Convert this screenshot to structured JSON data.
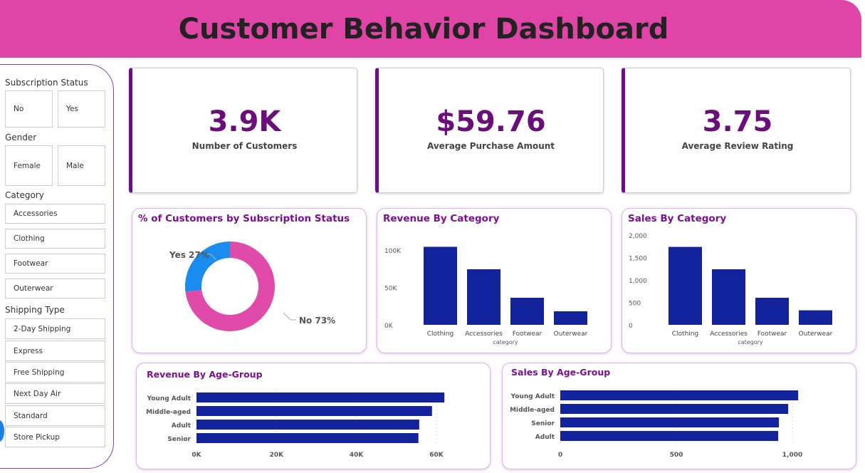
{
  "header": {
    "title": "Customer Behavior Dashboard"
  },
  "slicers": {
    "subscription": {
      "title": "Subscription Status",
      "options": [
        "No",
        "Yes"
      ]
    },
    "gender": {
      "title": "Gender",
      "options": [
        "Female",
        "Male"
      ]
    },
    "category": {
      "title": "Category",
      "options": [
        "Accessories",
        "Clothing",
        "Footwear",
        "Outerwear"
      ]
    },
    "shipping": {
      "title": "Shipping Type",
      "options": [
        "2-Day Shipping",
        "Express",
        "Free Shipping",
        "Next Day Air",
        "Standard",
        "Store Pickup"
      ]
    }
  },
  "kpis": [
    {
      "value": "3.9K",
      "label": "Number of Customers"
    },
    {
      "value": "$59.76",
      "label": "Average Purchase Amount"
    },
    {
      "value": "3.75",
      "label": "Average Review Rating"
    }
  ],
  "colors": {
    "header": "#e044a7",
    "bar": "#13239b",
    "accent": "#6a0f7a",
    "yes": "#1a8cf0",
    "no": "#e04aa8"
  },
  "chart_data": [
    {
      "type": "pie",
      "donut": true,
      "title": "% of Customers by Subscription Status",
      "categories": [
        "Yes",
        "No"
      ],
      "values": [
        27,
        73
      ],
      "labels": [
        "Yes 27%",
        "No 73%"
      ]
    },
    {
      "type": "bar",
      "title": "Revenue By Category",
      "categories": [
        "Clothing",
        "Accessories",
        "Footwear",
        "Outerwear"
      ],
      "values": [
        104300,
        74300,
        36200,
        18100
      ],
      "xlabel": "category",
      "ylim": [
        0,
        100000
      ],
      "yticks": [
        "0K",
        "50K",
        "100K"
      ]
    },
    {
      "type": "bar",
      "title": "Sales By Category",
      "categories": [
        "Clothing",
        "Accessories",
        "Footwear",
        "Outerwear"
      ],
      "values": [
        1737,
        1238,
        603,
        324
      ],
      "xlabel": "category",
      "ylim": [
        0,
        2000
      ],
      "yticks": [
        "0",
        "500",
        "1,000",
        "1,500",
        "2,000"
      ]
    },
    {
      "type": "bar",
      "orientation": "horizontal",
      "title": "Revenue By Age-Group",
      "categories": [
        "Young Adult",
        "Middle-aged",
        "Adult",
        "Senior"
      ],
      "values": [
        62000,
        58900,
        55700,
        55500
      ],
      "xlim": [
        0,
        60000
      ],
      "xticks": [
        "0K",
        "20K",
        "40K",
        "60K"
      ]
    },
    {
      "type": "bar",
      "orientation": "horizontal",
      "title": "Sales By Age-Group",
      "categories": [
        "Young Adult",
        "Middle-aged",
        "Senior",
        "Adult"
      ],
      "values": [
        1025,
        982,
        942,
        939
      ],
      "xlim": [
        0,
        1000
      ],
      "xticks": [
        "0",
        "500",
        "1,000"
      ]
    }
  ]
}
